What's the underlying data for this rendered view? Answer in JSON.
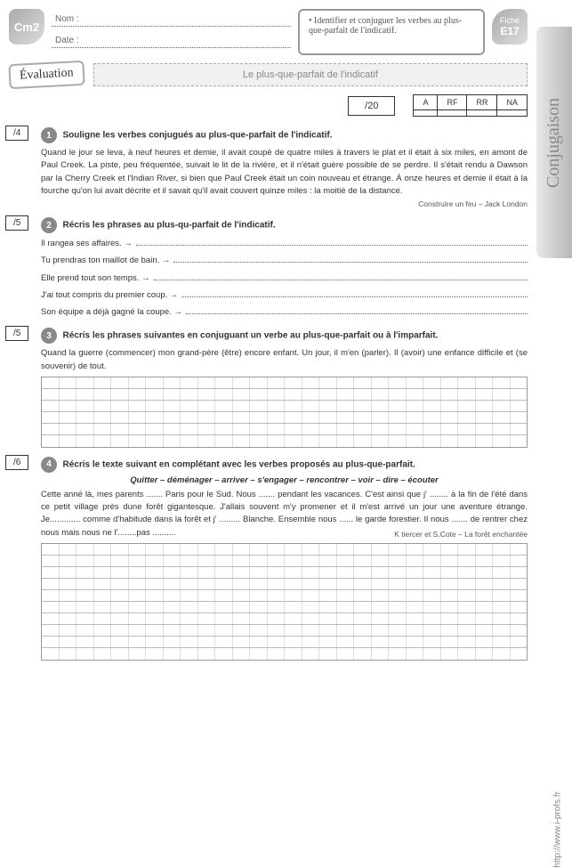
{
  "level": "Cm2",
  "nom_label": "Nom :",
  "date_label": "Date :",
  "objective": "• Identifier et conjuguer les verbes au plus-que-parfait de l'indicatif.",
  "fiche_label": "Fiche",
  "fiche_code": "E17",
  "eval_label": "Évaluation",
  "title": "Le plus-que-parfait de l'indicatif",
  "score": "/20",
  "grades": [
    "A",
    "RF",
    "RR",
    "NA"
  ],
  "subject_tab": "Conjugaison",
  "website": "http://www.i-profs.fr",
  "ex1": {
    "points": "/4",
    "num": "1",
    "title": "Souligne les verbes conjugués au plus-que-parfait de l'indicatif.",
    "text": "Quand le jour se leva, à neuf heures et demie, il avait coupé de quatre miles à travers le plat et il était à six miles, en amont de Paul Creek. La piste, peu fréquentée, suivait le lit de la rivière, et il n'était guère possible de se perdre. Il s'était rendu à Dawson par la Cherry Creek et l'Indian River, si bien que Paul Creek était un coin nouveau et étrange. À onze heures et demie il était à la fourche qu'on lui avait décrite et il savait qu'il avait couvert quinze miles : la moitié de la distance.",
    "source": "Construire un feu – Jack London"
  },
  "ex2": {
    "points": "/5",
    "num": "2",
    "title": "Récris les phrases au plus-qu-parfait de l'indicatif.",
    "lines": [
      "Il rangea ses affaires. →",
      "Tu prendras ton maillot de bain. →",
      "Elle prend tout son temps. →",
      "J'ai tout compris du premier coup. →",
      "Son équipe a déjà gagné la coupe. →"
    ]
  },
  "ex3": {
    "points": "/5",
    "num": "3",
    "title": "Récris les phrases suivantes en conjuguant un verbe au plus-que-parfait ou à l'imparfait.",
    "text": "Quand la guerre (commencer) mon grand-père (être) encore enfant. Un jour, il m'en (parler). Il (avoir) une enfance difficile et (se souvenir) de tout.",
    "grid_rows": 6,
    "grid_cols": 28
  },
  "ex4": {
    "points": "/6",
    "num": "4",
    "title": "Récris le texte suivant en complétant avec les verbes proposés au plus-que-parfait.",
    "verbs": "Quitter – déménager – arriver – s'engager – rencontrer – voir – dire – écouter",
    "text": "Cette anné là, mes parents ....... Paris pour le Sud. Nous ....... pendant les vacances. C'est ainsi que j' ........ à la fin de l'été dans ce petit village près dune forêt gigantesque. J'allais souvent m'y promener et il m'est arrivé un jour une aventure étrange. Je............. comme d'habitude dans la forêt et j' ......... Blanche. Ensemble nous ...... le garde forestier. Il nous ....... de rentrer chez nous mais nous ne l'........pas ..........",
    "source": "K tiercer et S.Cote – La forêt enchantée",
    "grid_rows": 10,
    "grid_cols": 28
  }
}
